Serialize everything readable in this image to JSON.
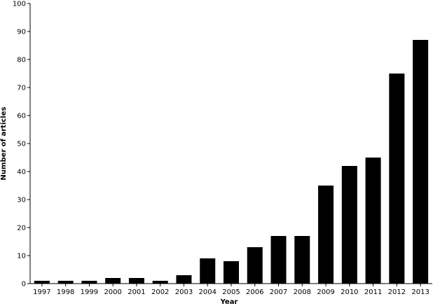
{
  "chart_data": {
    "type": "bar",
    "title": "",
    "xlabel": "Year",
    "ylabel": "Number of articles",
    "categories": [
      "1997",
      "1998",
      "1999",
      "2000",
      "2001",
      "2002",
      "2003",
      "2004",
      "2005",
      "2006",
      "2007",
      "2008",
      "2009",
      "2010",
      "2011",
      "2012",
      "2013"
    ],
    "values": [
      1,
      1,
      1,
      2,
      2,
      1,
      3,
      9,
      8,
      13,
      17,
      17,
      35,
      42,
      45,
      75,
      87
    ],
    "ylim": [
      0,
      100
    ],
    "yticks": [
      0,
      10,
      20,
      30,
      40,
      50,
      60,
      70,
      80,
      90,
      100
    ],
    "grid": false,
    "legend": "none",
    "bar_color": "#000000"
  }
}
